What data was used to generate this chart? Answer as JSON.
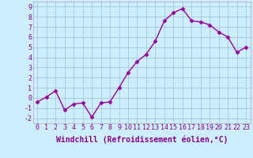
{
  "x": [
    0,
    1,
    2,
    3,
    4,
    5,
    6,
    7,
    8,
    9,
    10,
    11,
    12,
    13,
    14,
    15,
    16,
    17,
    18,
    19,
    20,
    21,
    22,
    23
  ],
  "y": [
    -0.4,
    0.1,
    0.7,
    -1.2,
    -0.6,
    -0.5,
    -1.9,
    -0.5,
    -0.4,
    1.0,
    2.5,
    3.6,
    4.3,
    5.6,
    7.6,
    8.4,
    8.8,
    7.6,
    7.5,
    7.2,
    6.5,
    6.0,
    4.5,
    5.0
  ],
  "line_color": "#990099",
  "marker": "D",
  "marker_size": 2.5,
  "bg_color": "#cceeff",
  "grid_color": "#aaccdd",
  "xlabel": "Windchill (Refroidissement éolien,°C)",
  "ylabel": "",
  "title": "",
  "xlim": [
    -0.5,
    23.5
  ],
  "ylim": [
    -2.5,
    9.5
  ],
  "xticks": [
    0,
    1,
    2,
    3,
    4,
    5,
    6,
    7,
    8,
    9,
    10,
    11,
    12,
    13,
    14,
    15,
    16,
    17,
    18,
    19,
    20,
    21,
    22,
    23
  ],
  "yticks": [
    -2,
    -1,
    0,
    1,
    2,
    3,
    4,
    5,
    6,
    7,
    8,
    9
  ],
  "xlabel_fontsize": 7,
  "tick_fontsize": 6,
  "line_width": 1.0,
  "text_color": "#880088"
}
